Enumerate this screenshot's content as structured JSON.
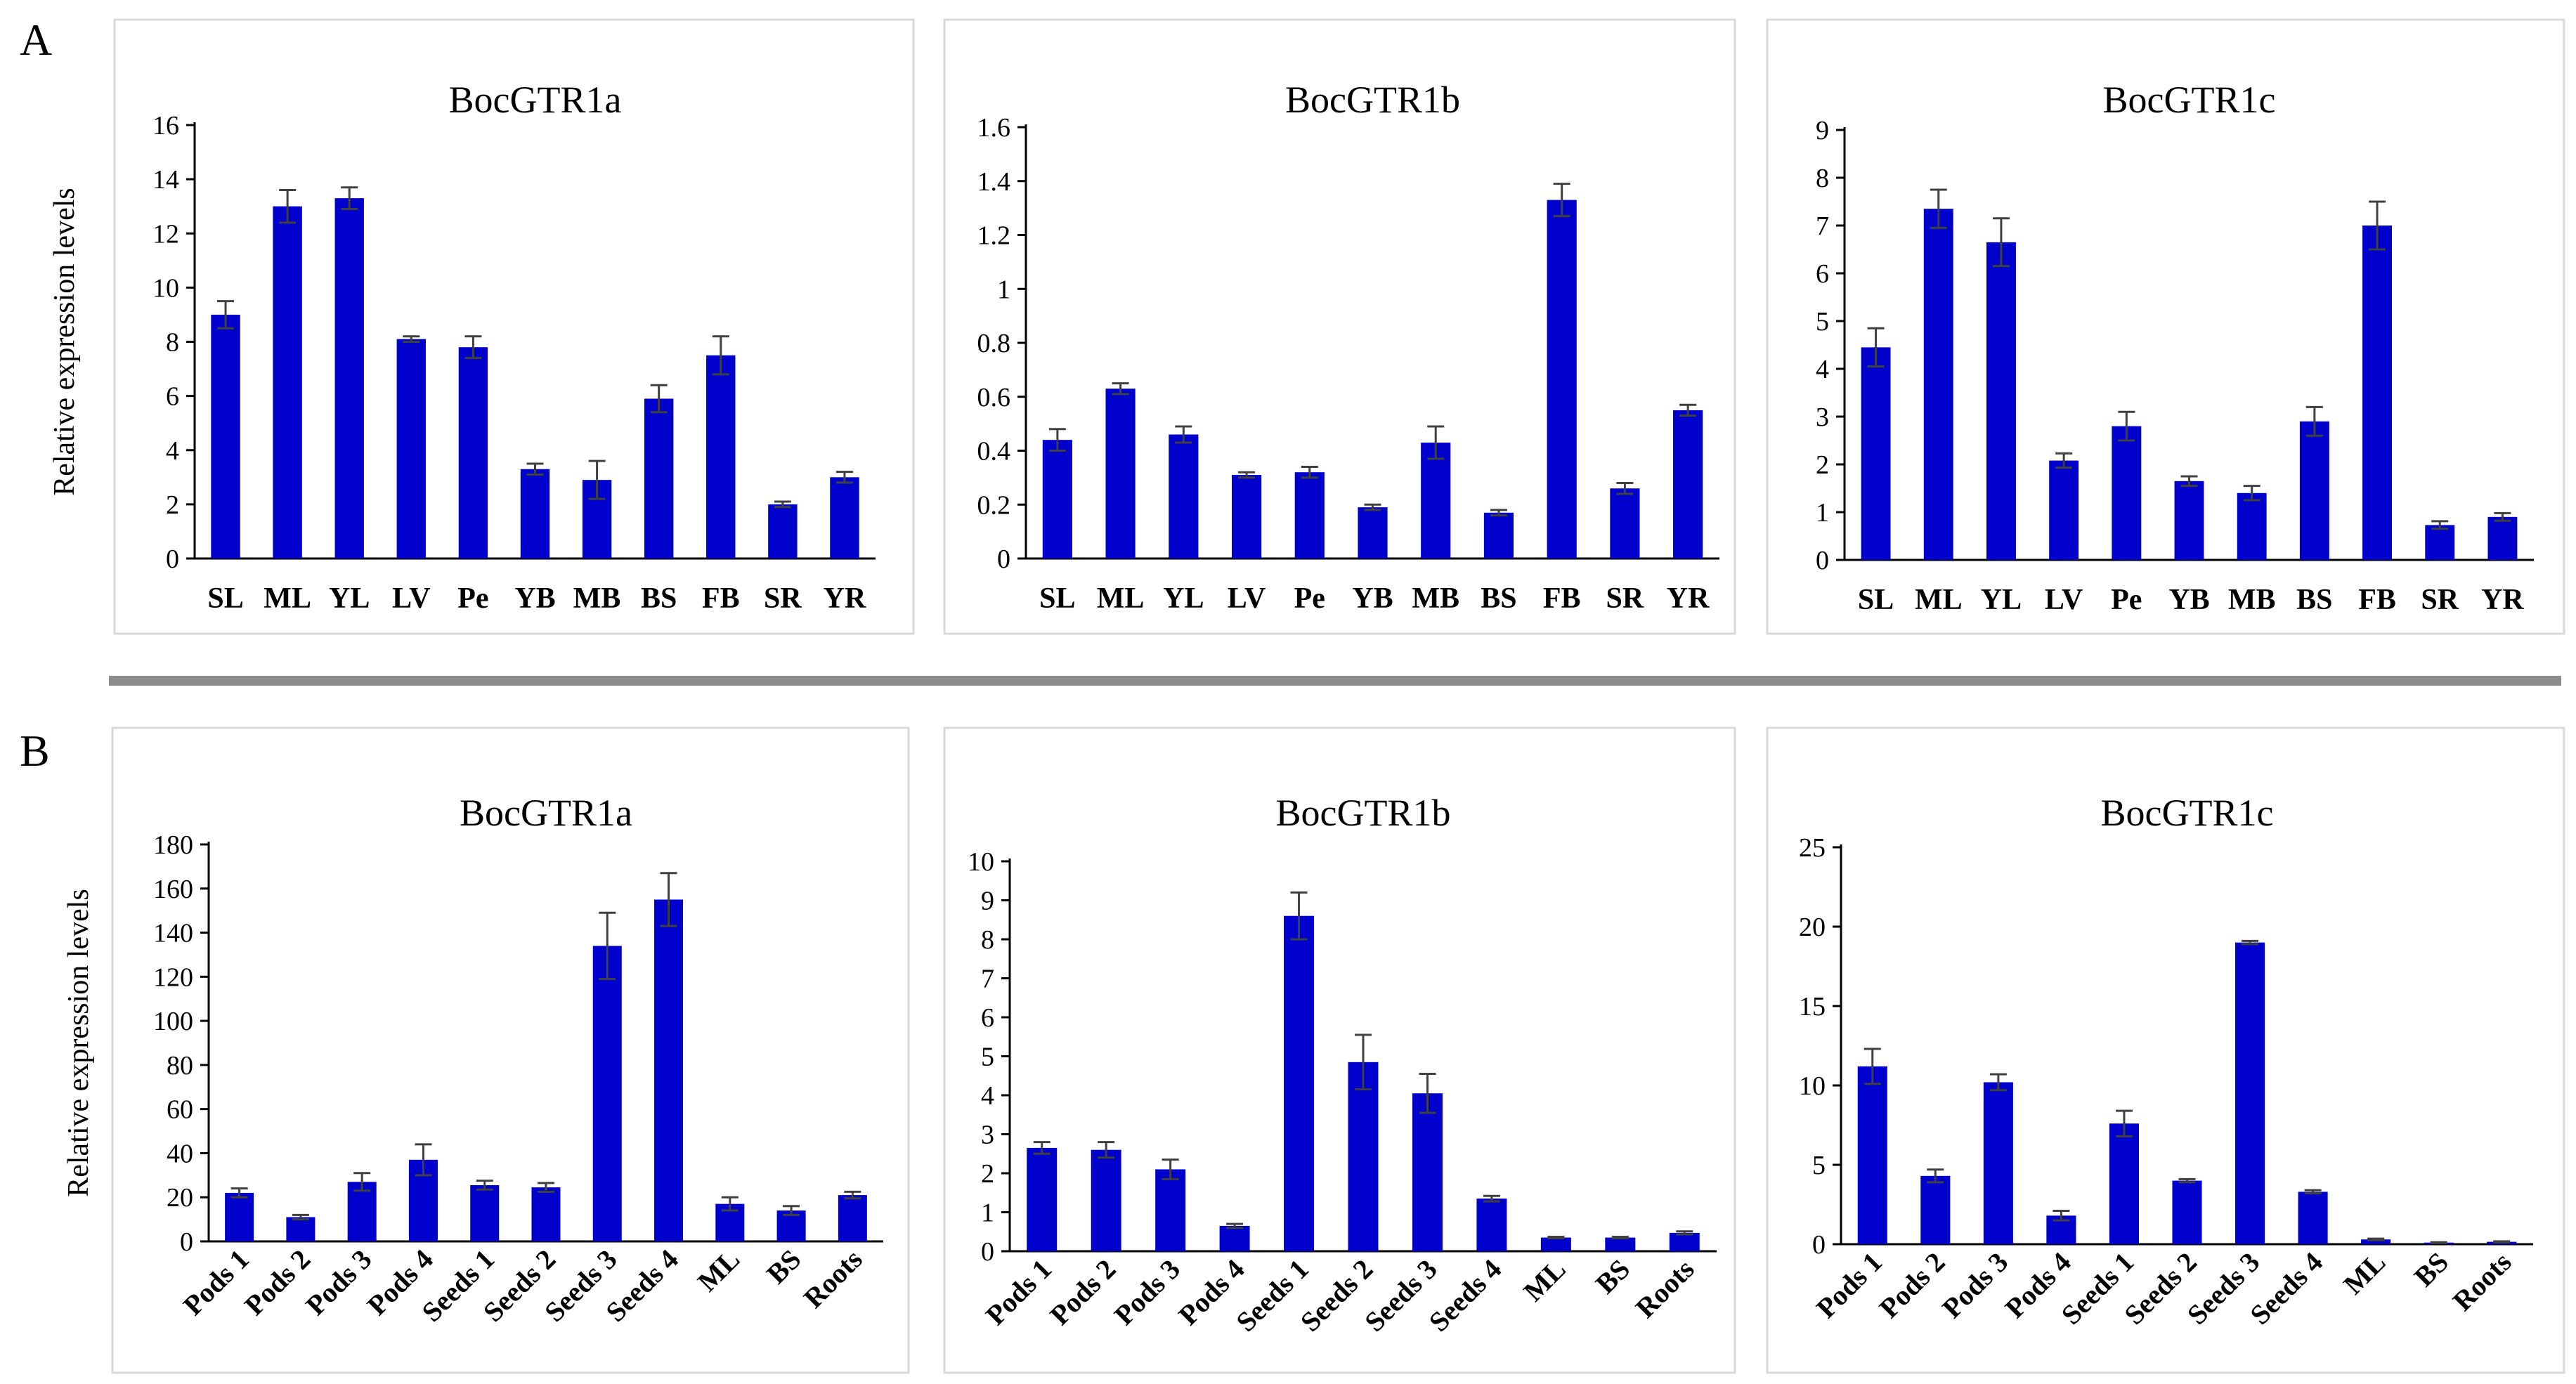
{
  "figure": {
    "section_labels": [
      "A",
      "B"
    ],
    "colors": {
      "bar": "#0000CC",
      "axis": "#000000",
      "error": "#404040",
      "panel_border": "#D9D9D9",
      "separator": "#8C8C8C"
    }
  },
  "chart_data": [
    {
      "id": "A1",
      "section": "A",
      "type": "bar",
      "title": "BocGTR1a",
      "ylabel": "Relative expression levels",
      "xlabel": "",
      "categories": [
        "SL",
        "ML",
        "YL",
        "LV",
        "Pe",
        "YB",
        "MB",
        "BS",
        "FB",
        "SR",
        "YR"
      ],
      "values": [
        9.0,
        13.0,
        13.3,
        8.1,
        7.8,
        3.3,
        2.9,
        5.9,
        7.5,
        2.0,
        3.0
      ],
      "errors": [
        0.5,
        0.6,
        0.4,
        0.1,
        0.4,
        0.2,
        0.7,
        0.5,
        0.7,
        0.1,
        0.2
      ],
      "ylim": [
        0,
        16
      ],
      "yticks": [
        "0",
        "2",
        "4",
        "6",
        "8",
        "10",
        "12",
        "14",
        "16"
      ],
      "grid": false,
      "rotate_labels": false
    },
    {
      "id": "A2",
      "section": "A",
      "type": "bar",
      "title": "BocGTR1b",
      "ylabel": "",
      "xlabel": "",
      "categories": [
        "SL",
        "ML",
        "YL",
        "LV",
        "Pe",
        "YB",
        "MB",
        "BS",
        "FB",
        "SR",
        "YR"
      ],
      "values": [
        0.44,
        0.63,
        0.46,
        0.31,
        0.32,
        0.19,
        0.43,
        0.17,
        1.33,
        0.26,
        0.55
      ],
      "errors": [
        0.04,
        0.02,
        0.03,
        0.01,
        0.02,
        0.01,
        0.06,
        0.01,
        0.06,
        0.02,
        0.02
      ],
      "ylim": [
        0,
        1.6
      ],
      "yticks": [
        "0",
        "0.2",
        "0.4",
        "0.6",
        "0.8",
        "1",
        "1.2",
        "1.4",
        "1.6"
      ],
      "grid": false,
      "rotate_labels": false
    },
    {
      "id": "A3",
      "section": "A",
      "type": "bar",
      "title": "BocGTR1c",
      "ylabel": "",
      "xlabel": "",
      "categories": [
        "SL",
        "ML",
        "YL",
        "LV",
        "Pe",
        "YB",
        "MB",
        "BS",
        "FB",
        "SR",
        "YR"
      ],
      "values": [
        4.45,
        7.35,
        6.65,
        2.08,
        2.8,
        1.65,
        1.4,
        2.9,
        7.0,
        0.73,
        0.9
      ],
      "errors": [
        0.4,
        0.4,
        0.5,
        0.15,
        0.3,
        0.1,
        0.15,
        0.3,
        0.5,
        0.08,
        0.08
      ],
      "ylim": [
        0,
        9
      ],
      "yticks": [
        "0",
        "1",
        "2",
        "3",
        "4",
        "5",
        "6",
        "7",
        "8",
        "9"
      ],
      "grid": false,
      "rotate_labels": false
    },
    {
      "id": "B1",
      "section": "B",
      "type": "bar",
      "title": "BocGTR1a",
      "ylabel": "Relative expression levels",
      "xlabel": "",
      "categories": [
        "Pods 1",
        "Pods 2",
        "Pods 3",
        "Pods 4",
        "Seeds 1",
        "Seeds 2",
        "Seeds 3",
        "Seeds 4",
        "ML",
        "BS",
        "Roots"
      ],
      "values": [
        22,
        11,
        27,
        37,
        25.5,
        24.5,
        134,
        155,
        17,
        14,
        21
      ],
      "errors": [
        2,
        1,
        4,
        7,
        2,
        2,
        15,
        12,
        3,
        2,
        1.5
      ],
      "ylim": [
        0,
        180
      ],
      "yticks": [
        "0",
        "20",
        "40",
        "60",
        "80",
        "100",
        "120",
        "140",
        "160",
        "180"
      ],
      "grid": false,
      "rotate_labels": true
    },
    {
      "id": "B2",
      "section": "B",
      "type": "bar",
      "title": "BocGTR1b",
      "ylabel": "",
      "xlabel": "",
      "categories": [
        "Pods 1",
        "Pods 2",
        "Pods 3",
        "Pods 4",
        "Seeds 1",
        "Seeds 2",
        "Seeds 3",
        "Seeds 4",
        "ML",
        "BS",
        "Roots"
      ],
      "values": [
        2.65,
        2.6,
        2.1,
        0.65,
        8.6,
        4.85,
        4.05,
        1.35,
        0.35,
        0.35,
        0.47
      ],
      "errors": [
        0.15,
        0.2,
        0.25,
        0.05,
        0.6,
        0.7,
        0.5,
        0.07,
        0.02,
        0.02,
        0.04
      ],
      "ylim": [
        0,
        10
      ],
      "yticks": [
        "0",
        "1",
        "2",
        "3",
        "4",
        "5",
        "6",
        "7",
        "8",
        "9",
        "10"
      ],
      "grid": false,
      "rotate_labels": true
    },
    {
      "id": "B3",
      "section": "B",
      "type": "bar",
      "title": "BocGTR1c",
      "ylabel": "",
      "xlabel": "",
      "categories": [
        "Pods 1",
        "Pods 2",
        "Pods 3",
        "Pods 4",
        "Seeds 1",
        "Seeds 2",
        "Seeds 3",
        "Seeds 4",
        "ML",
        "BS",
        "Roots"
      ],
      "values": [
        11.2,
        4.3,
        10.2,
        1.8,
        7.6,
        4.0,
        19.0,
        3.3,
        0.3,
        0.1,
        0.15
      ],
      "errors": [
        1.1,
        0.4,
        0.5,
        0.3,
        0.8,
        0.1,
        0.1,
        0.1,
        0.05,
        0.02,
        0.03
      ],
      "ylim": [
        0,
        25
      ],
      "yticks": [
        "0",
        "5",
        "10",
        "15",
        "20",
        "25"
      ],
      "grid": false,
      "rotate_labels": true
    }
  ]
}
